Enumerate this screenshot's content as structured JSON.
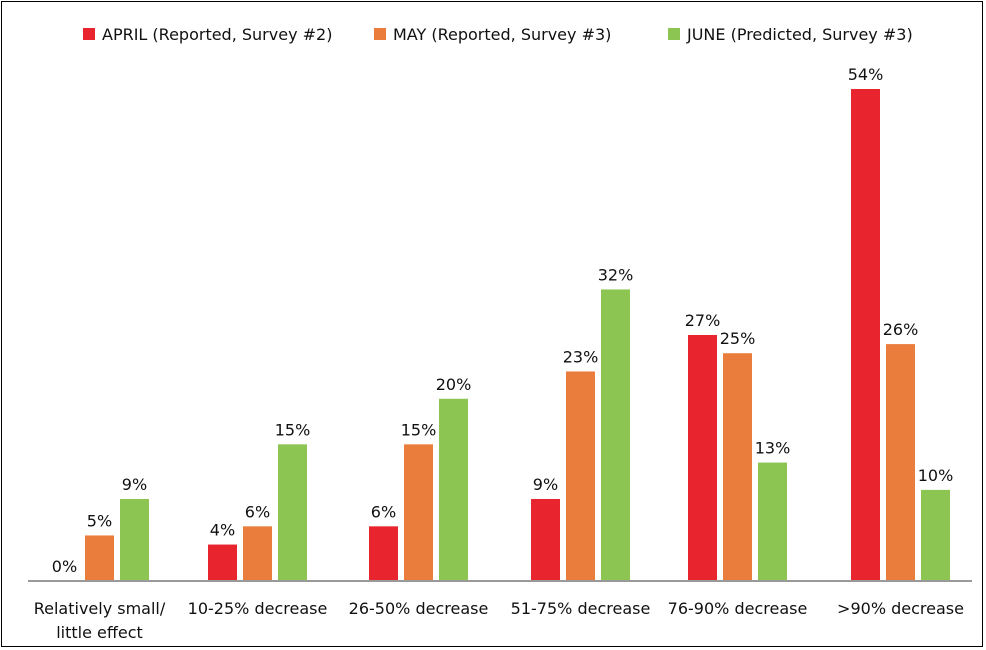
{
  "chart_data": {
    "type": "bar",
    "categories": [
      [
        "Relatively small/",
        "little effect"
      ],
      [
        "10-25% decrease"
      ],
      [
        "26-50% decrease"
      ],
      [
        "51-75% decrease"
      ],
      [
        "76-90% decrease"
      ],
      [
        ">90% decrease"
      ]
    ],
    "series": [
      {
        "name": "APRIL (Reported, Survey #2)",
        "color": "#e8242e",
        "values": [
          0,
          4,
          6,
          9,
          27,
          54
        ],
        "labels": [
          "0%",
          "4%",
          "6%",
          "9%",
          "27%",
          "54%"
        ]
      },
      {
        "name": "MAY (Reported, Survey #3)",
        "color": "#ea7d3c",
        "values": [
          5,
          6,
          15,
          23,
          25,
          26
        ],
        "labels": [
          "5%",
          "6%",
          "15%",
          "23%",
          "25%",
          "26%"
        ]
      },
      {
        "name": "JUNE (Predicted, Survey #3)",
        "color": "#8cc552",
        "values": [
          9,
          15,
          20,
          32,
          13,
          10
        ],
        "labels": [
          "9%",
          "15%",
          "20%",
          "32%",
          "13%",
          "10%"
        ]
      }
    ],
    "ylim": [
      0,
      54
    ],
    "legend_position": "top",
    "grid": false,
    "axis_color": "#999999"
  }
}
